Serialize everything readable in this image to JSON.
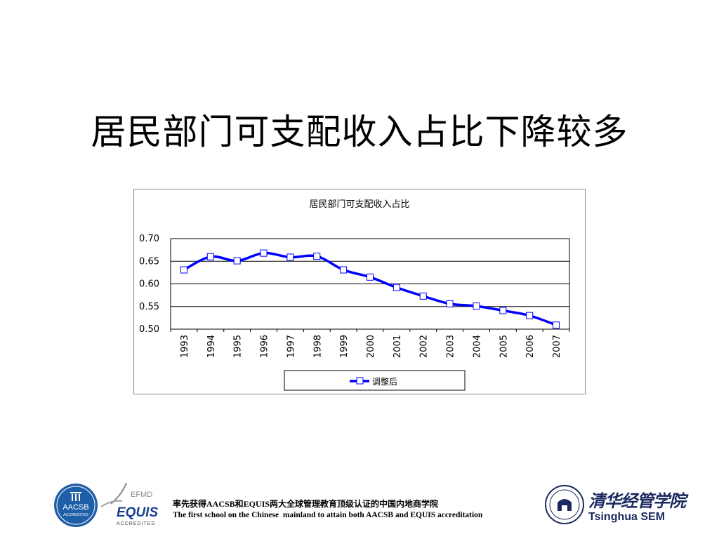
{
  "slide": {
    "title": "居民部门可支配收入占比下降较多"
  },
  "chart_data": {
    "type": "line",
    "title": "居民部门可支配收入占比",
    "xlabel": "",
    "ylabel": "",
    "categories": [
      "1993",
      "1994",
      "1995",
      "1996",
      "1997",
      "1998",
      "1999",
      "2000",
      "2001",
      "2002",
      "2003",
      "2004",
      "2005",
      "2006",
      "2007"
    ],
    "series": [
      {
        "name": "调整后",
        "values": [
          0.631,
          0.66,
          0.651,
          0.668,
          0.659,
          0.661,
          0.631,
          0.615,
          0.592,
          0.573,
          0.556,
          0.551,
          0.541,
          0.53,
          0.509
        ],
        "color": "#0000ff",
        "marker": "square"
      }
    ],
    "ylim": [
      0.5,
      0.7
    ],
    "yticks": [
      "0.70",
      "0.65",
      "0.60",
      "0.55",
      "0.50"
    ],
    "grid": true,
    "legend": "bottom"
  },
  "footer": {
    "aacsb_label": "AACSB",
    "aacsb_sub": "ACCREDITED",
    "efmd_label": "EFMD",
    "equis_label": "EQUIS",
    "equis_sub": "ACCREDITED",
    "text_cn": "率先获得AACSB和EQUIS两大全球管理教育顶级认证的中国内地商学院",
    "text_en": "The first school on the Chinese  mainland to attain both AACSB and EQUIS accreditation",
    "school_cn": "清华经管学院",
    "school_en": "Tsinghua SEM"
  },
  "colors": {
    "series": "#0000ff",
    "brand": "#1b2a5e",
    "aacsb_blue": "#1f5fa8",
    "equis_blue": "#1c3f94"
  }
}
